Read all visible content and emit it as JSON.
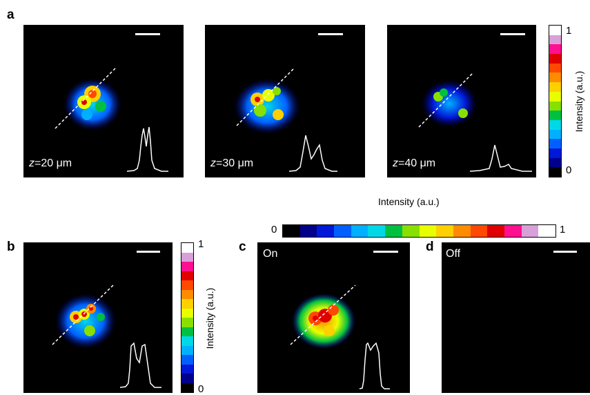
{
  "panel_labels": {
    "a": "a",
    "b": "b",
    "c": "c",
    "d": "d"
  },
  "panel_a": {
    "images": [
      {
        "z_var": "z",
        "z_value": "=20 μm"
      },
      {
        "z_var": "z",
        "z_value": "=30 μm"
      },
      {
        "z_var": "z",
        "z_value": "=40 μm"
      }
    ],
    "colorbar": {
      "max": "1",
      "min": "0",
      "title": "Intensity (a.u.)"
    }
  },
  "panel_b": {
    "colorbar": {
      "max": "1",
      "min": "0",
      "title": "Intensity (a.u.)"
    }
  },
  "horizontal_colorbar": {
    "title": "Intensity (a.u.)",
    "min": "0",
    "max": "1"
  },
  "panel_c": {
    "label": "On"
  },
  "panel_d": {
    "label": "Off"
  },
  "colormap": [
    "#000000",
    "#00008b",
    "#0018d8",
    "#0060ff",
    "#00b0ff",
    "#00d8e8",
    "#00c040",
    "#88e000",
    "#e8ff00",
    "#ffd000",
    "#ff8c00",
    "#ff4800",
    "#e00000",
    "#ff1090",
    "#d8a0d8",
    "#ffffff"
  ]
}
